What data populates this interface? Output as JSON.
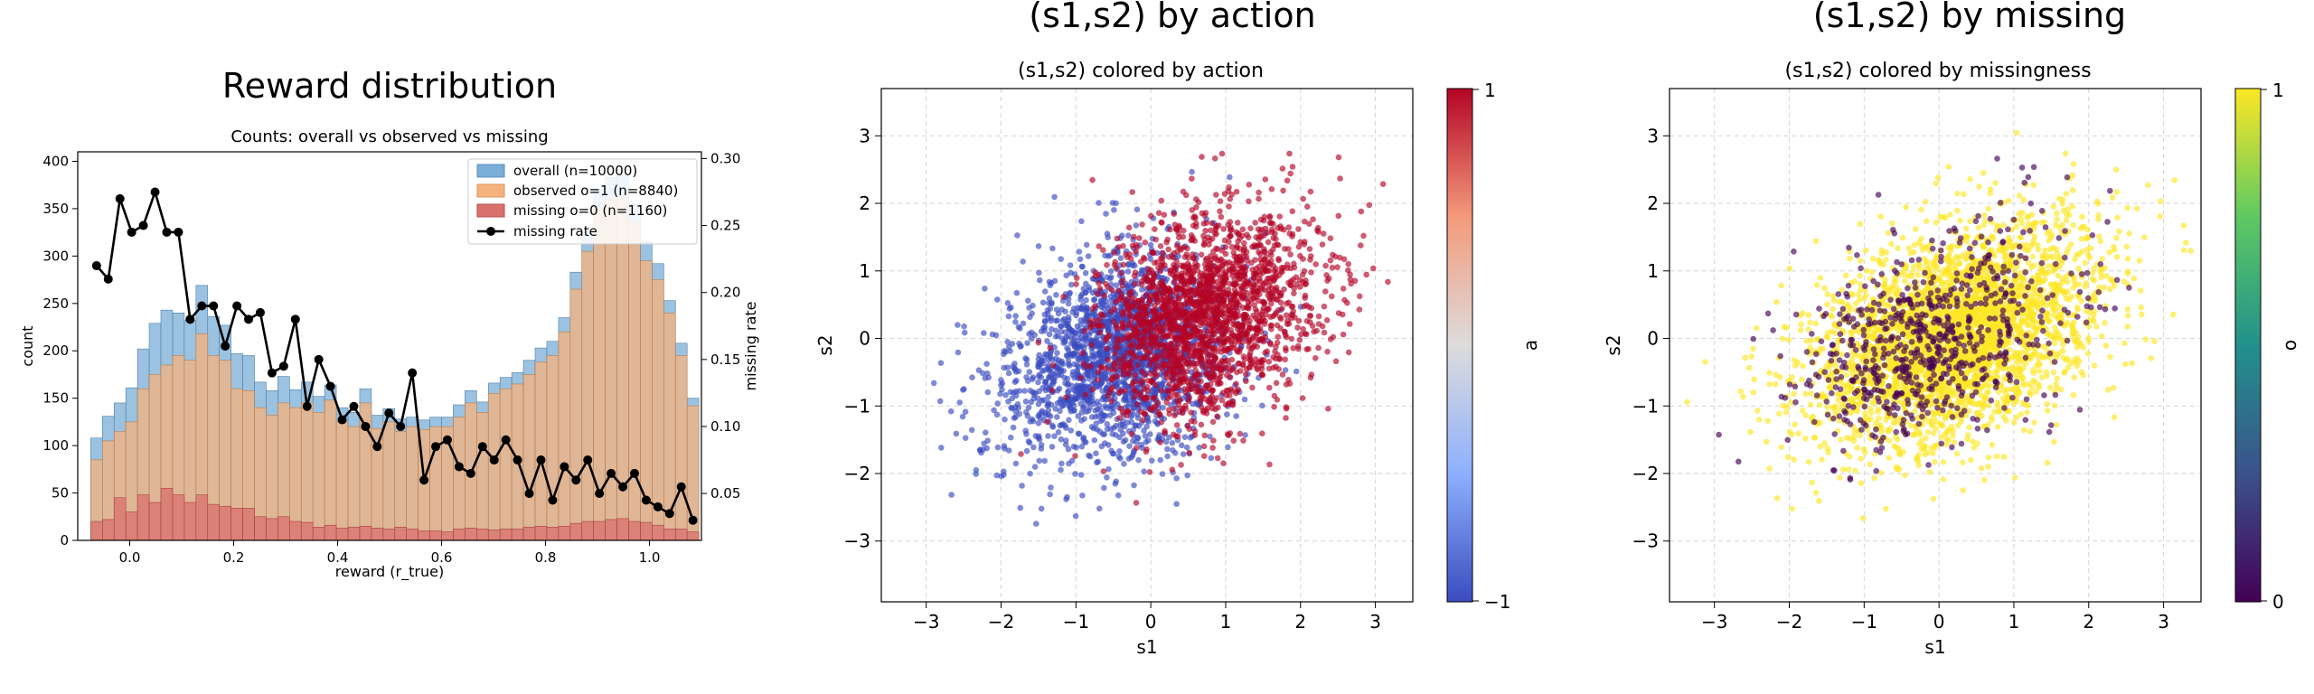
{
  "chart_data": [
    {
      "type": "bar",
      "suptitle": "Reward distribution",
      "title": "Counts: overall vs observed vs missing",
      "xlabel": "reward (r_true)",
      "ylabel": "count",
      "y2label": "missing rate",
      "xticks": [
        "0.0",
        "0.2",
        "0.4",
        "0.6",
        "0.8",
        "1.0"
      ],
      "yticks": [
        "0",
        "50",
        "100",
        "150",
        "200",
        "250",
        "300",
        "350",
        "400"
      ],
      "y2ticks": [
        "0.05",
        "0.10",
        "0.15",
        "0.20",
        "0.25",
        "0.30"
      ],
      "xlim": [
        -0.1,
        1.1
      ],
      "ylim": [
        0,
        410
      ],
      "y2lim": [
        0.015,
        0.305
      ],
      "legend_position": "top-right",
      "bin_start": -0.075,
      "bin_width": 0.0225,
      "legend": [
        {
          "label": "overall (n=10000)",
          "color": "#7aaed6"
        },
        {
          "label": "observed o=1 (n=8840)",
          "color": "#f5b27e"
        },
        {
          "label": "missing  o=0 (n=1160)",
          "color": "#d9706e"
        },
        {
          "label": "missing rate",
          "color": "#000000"
        }
      ],
      "series": [
        {
          "name": "overall (n=10000)",
          "values": [
            108,
            131,
            145,
            161,
            202,
            229,
            243,
            240,
            232,
            269,
            236,
            227,
            197,
            195,
            167,
            158,
            173,
            159,
            167,
            152,
            164,
            140,
            135,
            160,
            132,
            139,
            128,
            130,
            127,
            130,
            130,
            143,
            158,
            146,
            166,
            172,
            177,
            190,
            203,
            210,
            235,
            283,
            325,
            370,
            383,
            385,
            355,
            315,
            292,
            253,
            208,
            150
          ]
        },
        {
          "name": "observed o=1 (n=8840)",
          "values": [
            85,
            105,
            115,
            125,
            160,
            175,
            185,
            195,
            190,
            218,
            195,
            190,
            160,
            158,
            140,
            132,
            145,
            140,
            145,
            135,
            148,
            125,
            120,
            145,
            118,
            125,
            115,
            120,
            117,
            120,
            120,
            130,
            145,
            135,
            155,
            160,
            165,
            175,
            188,
            195,
            220,
            265,
            305,
            350,
            360,
            362,
            335,
            295,
            275,
            240,
            195,
            142
          ]
        },
        {
          "name": "missing  o=0 (n=1160)",
          "values": [
            20,
            22,
            45,
            30,
            48,
            40,
            55,
            48,
            40,
            48,
            38,
            36,
            34,
            34,
            25,
            23,
            25,
            20,
            19,
            14,
            16,
            13,
            14,
            15,
            13,
            12,
            14,
            12,
            10,
            10,
            9,
            12,
            13,
            12,
            11,
            12,
            12,
            14,
            15,
            14,
            15,
            18,
            20,
            20,
            22,
            23,
            20,
            19,
            16,
            12,
            12,
            9
          ]
        },
        {
          "name": "missing rate",
          "values": [
            0.22,
            0.21,
            0.27,
            0.245,
            0.25,
            0.275,
            0.245,
            0.245,
            0.18,
            0.19,
            0.19,
            0.16,
            0.19,
            0.18,
            0.185,
            0.14,
            0.145,
            0.18,
            0.115,
            0.15,
            0.13,
            0.105,
            0.115,
            0.1,
            0.085,
            0.11,
            0.1,
            0.14,
            0.06,
            0.085,
            0.09,
            0.07,
            0.065,
            0.085,
            0.075,
            0.09,
            0.075,
            0.05,
            0.075,
            0.045,
            0.07,
            0.06,
            0.075,
            0.05,
            0.065,
            0.055,
            0.065,
            0.045,
            0.04,
            0.035,
            0.055,
            0.03
          ]
        }
      ]
    },
    {
      "type": "scatter",
      "suptitle": "(s1,s2) by action",
      "title": "(s1,s2) colored by action",
      "xlabel": "s1",
      "ylabel": "s2",
      "colorbar_label": "a",
      "colorbar_ticks": [
        "1",
        "−1"
      ],
      "colormap": [
        "#3b4cc0",
        "#dddcdc",
        "#b40426"
      ],
      "xlim": [
        -3.6,
        3.5
      ],
      "ylim": [
        -3.9,
        3.7
      ],
      "xticks": [
        "−3",
        "−2",
        "−1",
        "0",
        "1",
        "2",
        "3"
      ],
      "yticks": [
        "−3",
        "−2",
        "−1",
        "0",
        "1",
        "2",
        "3"
      ],
      "grid": true,
      "n_points": 10000,
      "series": [
        {
          "name": "a = −1",
          "color": "#3b4cc0",
          "center": [
            -0.4,
            -0.1
          ],
          "spread": [
            0.85,
            0.75
          ]
        },
        {
          "name": "a = 1",
          "color": "#b40426",
          "center": [
            0.5,
            0.3
          ],
          "spread": [
            0.95,
            0.75
          ]
        }
      ]
    },
    {
      "type": "scatter",
      "suptitle": "(s1,s2) by missing",
      "title": "(s1,s2) colored by missingness",
      "xlabel": "s1",
      "ylabel": "s2",
      "colorbar_label": "o",
      "colorbar_ticks": [
        "1",
        "0"
      ],
      "colormap": [
        "#440154",
        "#21918c",
        "#fde725"
      ],
      "xlim": [
        -3.6,
        3.5
      ],
      "ylim": [
        -3.9,
        3.7
      ],
      "xticks": [
        "−3",
        "−2",
        "−1",
        "0",
        "1",
        "2",
        "3"
      ],
      "yticks": [
        "−3",
        "−2",
        "−1",
        "0",
        "1",
        "2",
        "3"
      ],
      "grid": true,
      "n_points": 10000,
      "series": [
        {
          "name": "o = 1",
          "color": "#fde725",
          "center": [
            0.2,
            0.2
          ],
          "spread": [
            0.95,
            0.8
          ]
        },
        {
          "name": "o = 0",
          "color": "#440154",
          "center": [
            -0.6,
            -0.3
          ],
          "spread": [
            0.75,
            0.7
          ]
        }
      ]
    }
  ]
}
